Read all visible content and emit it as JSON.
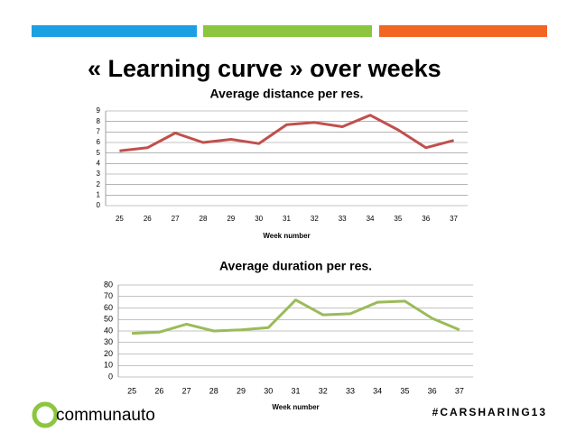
{
  "slide": {
    "title": "« Learning curve » over weeks",
    "logo": "communauto",
    "hashtag": "#CARSHARING13"
  },
  "chart_data": [
    {
      "type": "line",
      "title": "Average distance per res.",
      "x_label": "Week number",
      "categories": [
        25,
        26,
        27,
        28,
        29,
        30,
        31,
        32,
        33,
        34,
        35,
        36,
        37
      ],
      "values": [
        5.2,
        5.5,
        6.9,
        6.0,
        6.3,
        5.9,
        7.7,
        7.9,
        7.5,
        8.6,
        7.2,
        5.5,
        6.2
      ],
      "color": "#c0504d",
      "ylim": [
        0,
        9
      ],
      "yticks": [
        0,
        1,
        2,
        3,
        4,
        5,
        6,
        7,
        8,
        9
      ],
      "grid": true
    },
    {
      "type": "line",
      "title": "Average duration per res.",
      "x_label": "Week number",
      "categories": [
        25,
        26,
        27,
        28,
        29,
        30,
        31,
        32,
        33,
        34,
        35,
        36,
        37
      ],
      "values": [
        38,
        39,
        46,
        40,
        41,
        43,
        67,
        54,
        55,
        65,
        66,
        51,
        41
      ],
      "color": "#9bbb59",
      "ylim": [
        0,
        80
      ],
      "yticks": [
        0,
        10,
        20,
        30,
        40,
        50,
        60,
        70,
        80
      ],
      "grid": true
    }
  ]
}
